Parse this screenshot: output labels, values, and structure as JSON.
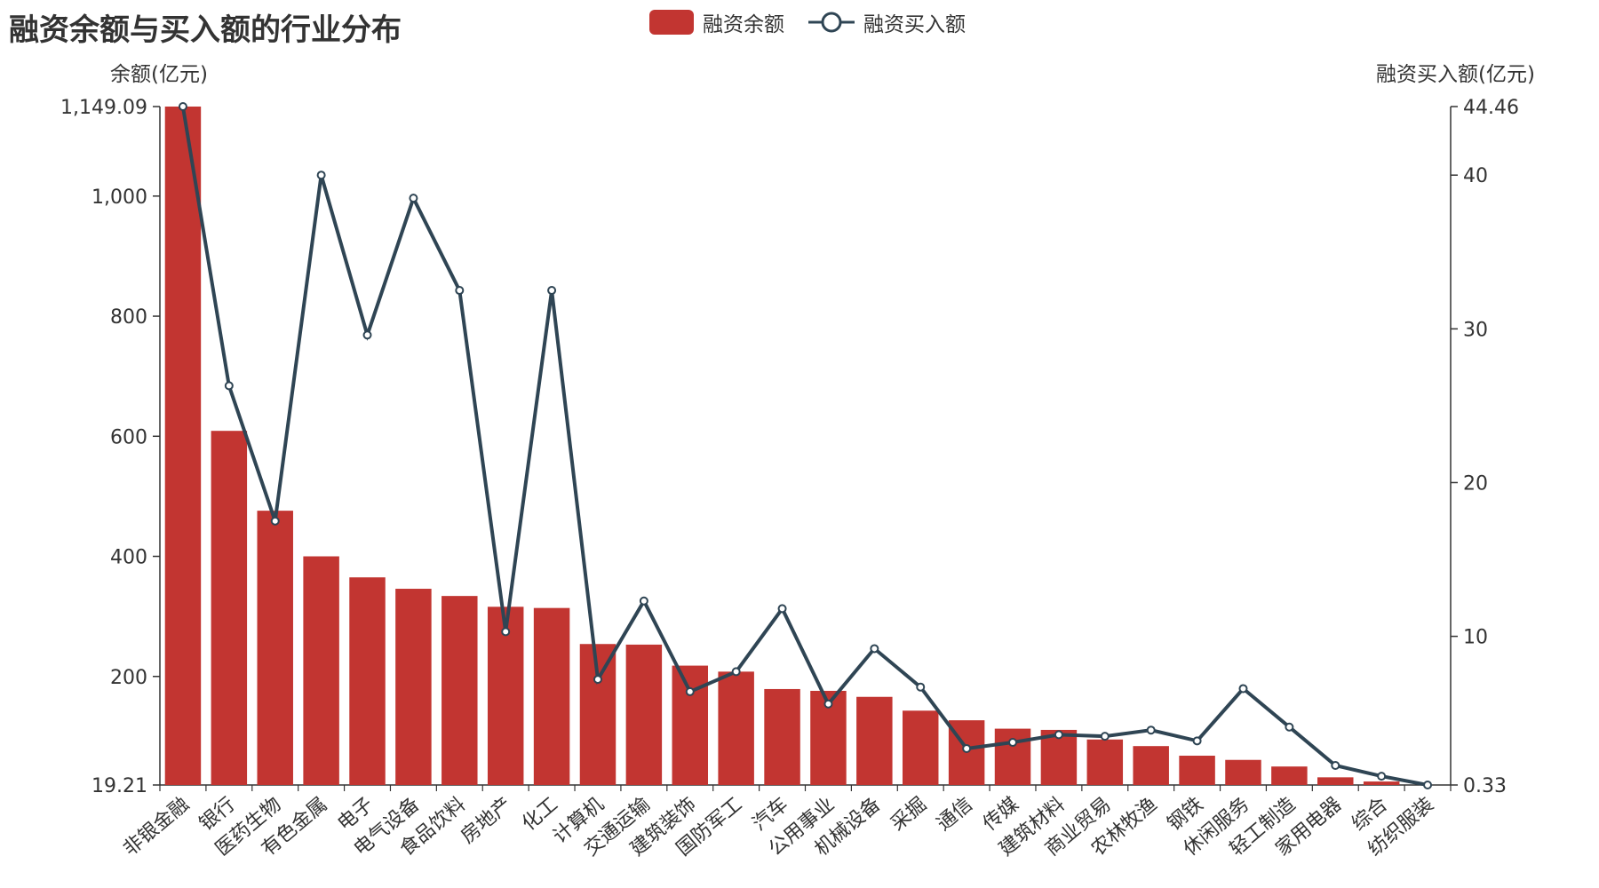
{
  "chart_data": {
    "type": "bar",
    "title": "融资余额与买入额的行业分布",
    "categories": [
      "非银金融",
      "银行",
      "医药生物",
      "有色金属",
      "电子",
      "电气设备",
      "食品饮料",
      "房地产",
      "化工",
      "计算机",
      "交通运输",
      "建筑装饰",
      "国防军工",
      "汽车",
      "公用事业",
      "机械设备",
      "采掘",
      "通信",
      "传媒",
      "建筑材料",
      "商业贸易",
      "农林牧渔",
      "钢铁",
      "休闲服务",
      "轻工制造",
      "家用电器",
      "综合",
      "纺织服装"
    ],
    "series": [
      {
        "name": "融资余额",
        "type": "bar",
        "axis": "left",
        "color": "#c23531",
        "values": [
          1149.09,
          609,
          476,
          400,
          365,
          346,
          334,
          316,
          314,
          254,
          253,
          218,
          208,
          179,
          176,
          166,
          143,
          127,
          113,
          111,
          95,
          84,
          68,
          61,
          50,
          32,
          25,
          19.21
        ]
      },
      {
        "name": "融资买入额",
        "type": "line",
        "axis": "right",
        "color": "#2f4554",
        "values": [
          44.46,
          26.3,
          17.5,
          40,
          29.6,
          38.5,
          32.5,
          10.3,
          32.5,
          7.2,
          12.3,
          6.4,
          7.7,
          11.8,
          5.6,
          9.2,
          6.7,
          2.7,
          3.1,
          3.6,
          3.5,
          3.9,
          3.2,
          6.6,
          4.1,
          1.6,
          0.9,
          0.33
        ]
      }
    ],
    "y_left": {
      "name": "余额(亿元)",
      "min": 19.21,
      "max": 1149.09,
      "ticks": [
        200,
        400,
        600,
        800,
        1000
      ],
      "tick_labels": [
        "200",
        "400",
        "600",
        "800",
        "1,000"
      ],
      "min_label": "19.21",
      "max_label": "1,149.09"
    },
    "y_right": {
      "name": "融资买入额(亿元)",
      "min": 0.33,
      "max": 44.46,
      "ticks": [
        10,
        20,
        30,
        40
      ],
      "tick_labels": [
        "10",
        "20",
        "30",
        "40"
      ],
      "min_label": "0.33",
      "max_label": "44.46"
    },
    "x_label_rotation_deg": 40,
    "legend_position": "top-center",
    "grid": false
  }
}
